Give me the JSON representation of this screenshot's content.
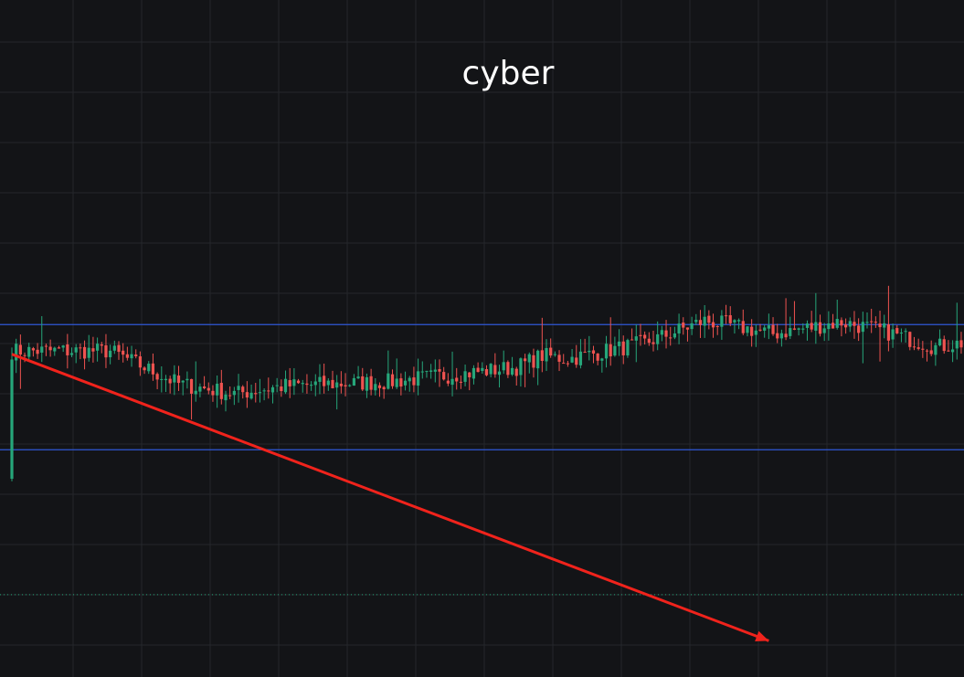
{
  "title": "cyber",
  "colors": {
    "background": "#131417",
    "grid": "#24262b",
    "up": "#26a67a",
    "down": "#ef5350",
    "level_line": "#2f57d6",
    "trend_line": "#f0231c",
    "current_price_line": "#26a67a"
  },
  "chart_data": {
    "type": "candlestick",
    "title": "cyber",
    "grid": true,
    "y_axis_visible": false,
    "x_axis_visible": false,
    "price_range": [
      0,
      100
    ],
    "horizontal_levels": [
      53.5,
      34.5
    ],
    "current_price": 12.5,
    "trend_line": {
      "from_candle": 0,
      "from_price": 49,
      "to_candle": 177,
      "to_price": 5.5,
      "arrow": true
    },
    "legs": [
      [
        0,
        24
      ],
      [
        -5,
        16
      ],
      [
        -1.5,
        13
      ],
      [
        1.2,
        12
      ],
      [
        0.6,
        24
      ],
      [
        2.2,
        30
      ],
      [
        1.8,
        6
      ],
      [
        -0.5,
        6
      ],
      [
        2.4,
        18
      ],
      [
        3.4,
        14
      ],
      [
        -2,
        16
      ],
      [
        1.8,
        16
      ],
      [
        -1.4,
        10
      ],
      [
        -2.4,
        12
      ],
      [
        0.8,
        8
      ],
      [
        3.5,
        8
      ],
      [
        -6,
        10
      ],
      [
        -2,
        12
      ],
      [
        -3.8,
        10
      ],
      [
        2.4,
        10
      ],
      [
        -0.7,
        10
      ],
      [
        4.8,
        10
      ],
      [
        -2,
        10
      ],
      [
        -0.3,
        8
      ],
      [
        -4,
        6
      ],
      [
        -1.5,
        6
      ],
      [
        1.5,
        8
      ],
      [
        -1,
        10
      ],
      [
        -1.1,
        6
      ],
      [
        -3.4,
        6
      ],
      [
        -3.2,
        4
      ],
      [
        4.2,
        9
      ]
    ]
  }
}
